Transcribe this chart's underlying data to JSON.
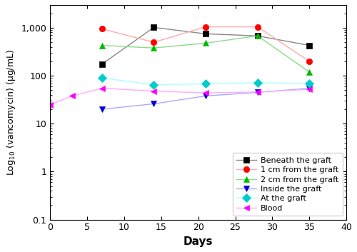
{
  "series": [
    {
      "label": "Beneath the graft",
      "line_color": "#888888",
      "marker": "s",
      "marker_facecolor": "#000000",
      "marker_edgecolor": "#000000",
      "x": [
        7,
        14,
        21,
        28,
        35
      ],
      "y": [
        175,
        1020,
        750,
        680,
        430
      ]
    },
    {
      "label": "1 cm from the graft",
      "line_color": "#ffaaaa",
      "marker": "o",
      "marker_facecolor": "#ff0000",
      "marker_edgecolor": "#ff0000",
      "x": [
        7,
        14,
        21,
        28,
        35
      ],
      "y": [
        950,
        500,
        1050,
        1050,
        200
      ]
    },
    {
      "label": "2 cm from the graft",
      "line_color": "#88dd88",
      "marker": "^",
      "marker_facecolor": "#00bb00",
      "marker_edgecolor": "#00bb00",
      "x": [
        7,
        14,
        21,
        28,
        35
      ],
      "y": [
        430,
        380,
        480,
        680,
        120
      ]
    },
    {
      "label": "Inside the graft",
      "line_color": "#aaaaff",
      "marker": "v",
      "marker_facecolor": "#0000dd",
      "marker_edgecolor": "#0000dd",
      "x": [
        7,
        14,
        21,
        28,
        35
      ],
      "y": [
        20,
        26,
        38,
        45,
        55
      ]
    },
    {
      "label": "At the graft",
      "line_color": "#aaffff",
      "marker": "D",
      "marker_facecolor": "#00cccc",
      "marker_edgecolor": "#00cccc",
      "x": [
        7,
        14,
        21,
        28,
        35
      ],
      "y": [
        90,
        65,
        68,
        72,
        68
      ]
    },
    {
      "label": "Blood",
      "line_color": "#ffaaff",
      "marker": "<",
      "marker_facecolor": "#ff00ff",
      "marker_edgecolor": "#ff00ff",
      "x": [
        0,
        3,
        7,
        14,
        21,
        28,
        35
      ],
      "y": [
        25,
        38,
        55,
        48,
        44,
        46,
        52
      ]
    }
  ],
  "xlabel": "Days",
  "ylabel": "Log$_{10}$ (vancomycin) (µg/mL)",
  "xlim": [
    0,
    40
  ],
  "ylim": [
    0.1,
    3000
  ],
  "yticks": [
    0.1,
    1,
    10,
    100,
    1000
  ],
  "ytick_labels": [
    "0.1",
    "1",
    "10",
    "100",
    "1,000"
  ],
  "xticks": [
    0,
    5,
    10,
    15,
    20,
    25,
    30,
    35,
    40
  ],
  "legend_loc": "lower right",
  "legend_fontsize": 8,
  "markersize": 6,
  "linewidth": 1.0
}
